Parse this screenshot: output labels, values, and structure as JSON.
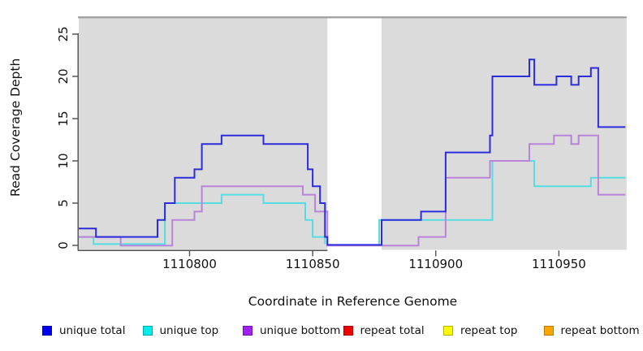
{
  "chart_data": {
    "type": "line",
    "subtype": "step-coverage",
    "title": "",
    "xlabel": "Coordinate in Reference Genome",
    "ylabel": "Read Coverage Depth",
    "x_ticks": [
      1110800,
      1110850,
      1110900,
      1110950
    ],
    "y_ticks": [
      0,
      5,
      10,
      15,
      20,
      25
    ],
    "xlim": [
      1110755,
      1110977
    ],
    "ylim": [
      0,
      27
    ],
    "grid": false,
    "gap_region": [
      1110856,
      1110878
    ],
    "layout": {
      "panel_bg": "#dbdbdb",
      "gap_bg": "#ffffff",
      "panel_top_border": "#9a9a9a",
      "axis_color": "#4d4d4d",
      "text_color": "#111111"
    },
    "series": [
      {
        "name": "unique total",
        "color": "#2c2cdc",
        "crosses_gap": true,
        "steps": [
          [
            1110755,
            2
          ],
          [
            1110762,
            1
          ],
          [
            1110787,
            3
          ],
          [
            1110790,
            5
          ],
          [
            1110794,
            8
          ],
          [
            1110802,
            9
          ],
          [
            1110805,
            12
          ],
          [
            1110813,
            13
          ],
          [
            1110830,
            12
          ],
          [
            1110848,
            9
          ],
          [
            1110850,
            7
          ],
          [
            1110853,
            5
          ],
          [
            1110855,
            1
          ],
          [
            1110856,
            0
          ],
          [
            1110878,
            3
          ],
          [
            1110894,
            4
          ],
          [
            1110904,
            11
          ],
          [
            1110922,
            13
          ],
          [
            1110923,
            20
          ],
          [
            1110938,
            22
          ],
          [
            1110940,
            19
          ],
          [
            1110949,
            20
          ],
          [
            1110955,
            19
          ],
          [
            1110958,
            20
          ],
          [
            1110963,
            21
          ],
          [
            1110966,
            14
          ]
        ],
        "end": 1110977
      },
      {
        "name": "unique top",
        "color": "#55dde2",
        "crosses_gap": false,
        "steps": [
          [
            1110755,
            1
          ],
          [
            1110761,
            0
          ],
          [
            1110790,
            5
          ],
          [
            1110813,
            6
          ],
          [
            1110830,
            5
          ],
          [
            1110847,
            3
          ],
          [
            1110850,
            1
          ],
          [
            1110855,
            0
          ],
          [
            1110877,
            3
          ],
          [
            1110923,
            10
          ],
          [
            1110940,
            7
          ],
          [
            1110963,
            8
          ]
        ],
        "end": 1110977
      },
      {
        "name": "unique bottom",
        "color": "#b983da",
        "crosses_gap": true,
        "steps": [
          [
            1110755,
            1
          ],
          [
            1110772,
            0
          ],
          [
            1110793,
            3
          ],
          [
            1110802,
            4
          ],
          [
            1110805,
            7
          ],
          [
            1110846,
            6
          ],
          [
            1110851,
            4
          ],
          [
            1110856,
            0
          ],
          [
            1110893,
            1
          ],
          [
            1110904,
            8
          ],
          [
            1110922,
            10
          ],
          [
            1110938,
            12
          ],
          [
            1110948,
            13
          ],
          [
            1110955,
            12
          ],
          [
            1110958,
            13
          ],
          [
            1110966,
            6
          ]
        ],
        "end": 1110977
      },
      {
        "name": "repeat total",
        "color": "#e23b3b",
        "crosses_gap": false,
        "steps": [
          [
            1110755,
            0
          ]
        ],
        "end": 1110977
      },
      {
        "name": "repeat top",
        "color": "#f2ee45",
        "crosses_gap": false,
        "steps": [
          [
            1110755,
            0
          ]
        ],
        "end": 1110977
      },
      {
        "name": "repeat bottom",
        "color": "#ffa024",
        "crosses_gap": false,
        "steps": [
          [
            1110755,
            0
          ]
        ],
        "end": 1110977
      }
    ],
    "legend": [
      {
        "label": "unique total",
        "fill": "#0000f0",
        "border": "#0000a8"
      },
      {
        "label": "unique top",
        "fill": "#00ecec",
        "border": "#00a8a8"
      },
      {
        "label": "unique bottom",
        "fill": "#a020f0",
        "border": "#7612b4"
      },
      {
        "label": "repeat total",
        "fill": "#f00000",
        "border": "#a80000"
      },
      {
        "label": "repeat top",
        "fill": "#fdfd00",
        "border": "#b4b400"
      },
      {
        "label": "repeat bottom",
        "fill": "#ffa500",
        "border": "#b97a06"
      }
    ],
    "legend_position": "bottom"
  }
}
